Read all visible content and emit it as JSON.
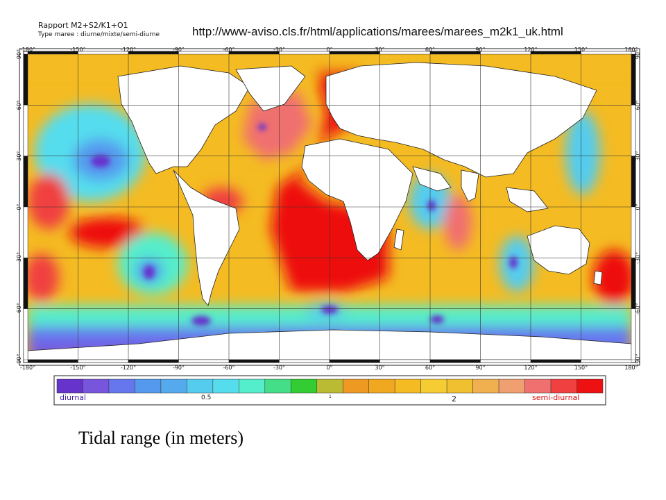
{
  "header": {
    "ratio_title": "Rapport M2+S2/K1+O1",
    "type_line": "Type maree : diurne/mixte/semi-diurne",
    "url": "http://www-aviso.cls.fr/html/applications/marees/marees_m2k1_uk.html"
  },
  "axes": {
    "longitude_ticks": [
      "-180°",
      "-150°",
      "-120°",
      "-90°",
      "-60°",
      "-30°",
      "0°",
      "30°",
      "60°",
      "90°",
      "120°",
      "150°",
      "180°"
    ],
    "latitude_ticks": [
      "90°",
      "60°",
      "30°",
      "0°",
      "-30°",
      "-60°",
      "-90°"
    ]
  },
  "legend": {
    "left_label": "diurnal",
    "label_05": "0.5",
    "label_1": "1",
    "label_2": "2",
    "right_label": "semi-diurnal",
    "colors": [
      "#6633cc",
      "#7755dd",
      "#6677ee",
      "#5599ee",
      "#55aaee",
      "#55ccee",
      "#55ddee",
      "#55eecc",
      "#44dd88",
      "#33cc33",
      "#bbbb33",
      "#ee9922",
      "#f0a820",
      "#f4bb22",
      "#f6cc33",
      "#f0c030",
      "#f0b050",
      "#f0a070",
      "#f07070",
      "#f04040",
      "#ee1111"
    ]
  },
  "caption": "Tidal range (in meters)"
}
